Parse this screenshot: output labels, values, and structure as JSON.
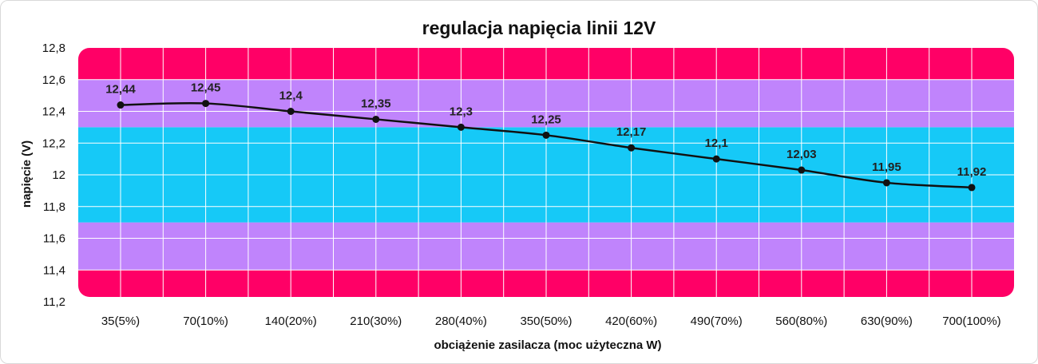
{
  "chart_data": {
    "type": "line",
    "title": "regulacja napięcia linii 12V",
    "xlabel": "obciążenie zasilacza (moc użyteczna W)",
    "ylabel": "napięcie (V)",
    "categories": [
      "35(5%)",
      "70(10%)",
      "140(20%)",
      "210(30%)",
      "280(40%)",
      "350(50%)",
      "420(60%)",
      "490(70%)",
      "560(80%)",
      "630(90%)",
      "700(100%)"
    ],
    "values": [
      12.44,
      12.45,
      12.4,
      12.35,
      12.3,
      12.25,
      12.17,
      12.1,
      12.03,
      11.95,
      11.92
    ],
    "data_labels": [
      "12,44",
      "12,45",
      "12,4",
      "12,35",
      "12,3",
      "12,25",
      "12,17",
      "12,1",
      "12,03",
      "11,95",
      "11,92"
    ],
    "ylim": [
      11.2,
      12.8
    ],
    "yticks": [
      11.2,
      11.4,
      11.6,
      11.8,
      12.0,
      12.2,
      12.4,
      12.6,
      12.8
    ],
    "ytick_labels": [
      "11,2",
      "11,4",
      "11,6",
      "11,8",
      "12",
      "12,2",
      "12,4",
      "12,6",
      "12,8"
    ],
    "bands": [
      {
        "from": 11.2,
        "to": 11.4,
        "color": "#ff0066"
      },
      {
        "from": 11.4,
        "to": 11.7,
        "color": "#c084fc"
      },
      {
        "from": 11.7,
        "to": 12.3,
        "color": "#16c9f7"
      },
      {
        "from": 12.3,
        "to": 12.6,
        "color": "#c084fc"
      },
      {
        "from": 12.6,
        "to": 12.8,
        "color": "#ff0066"
      }
    ],
    "grid": true,
    "line_color": "#111111"
  }
}
